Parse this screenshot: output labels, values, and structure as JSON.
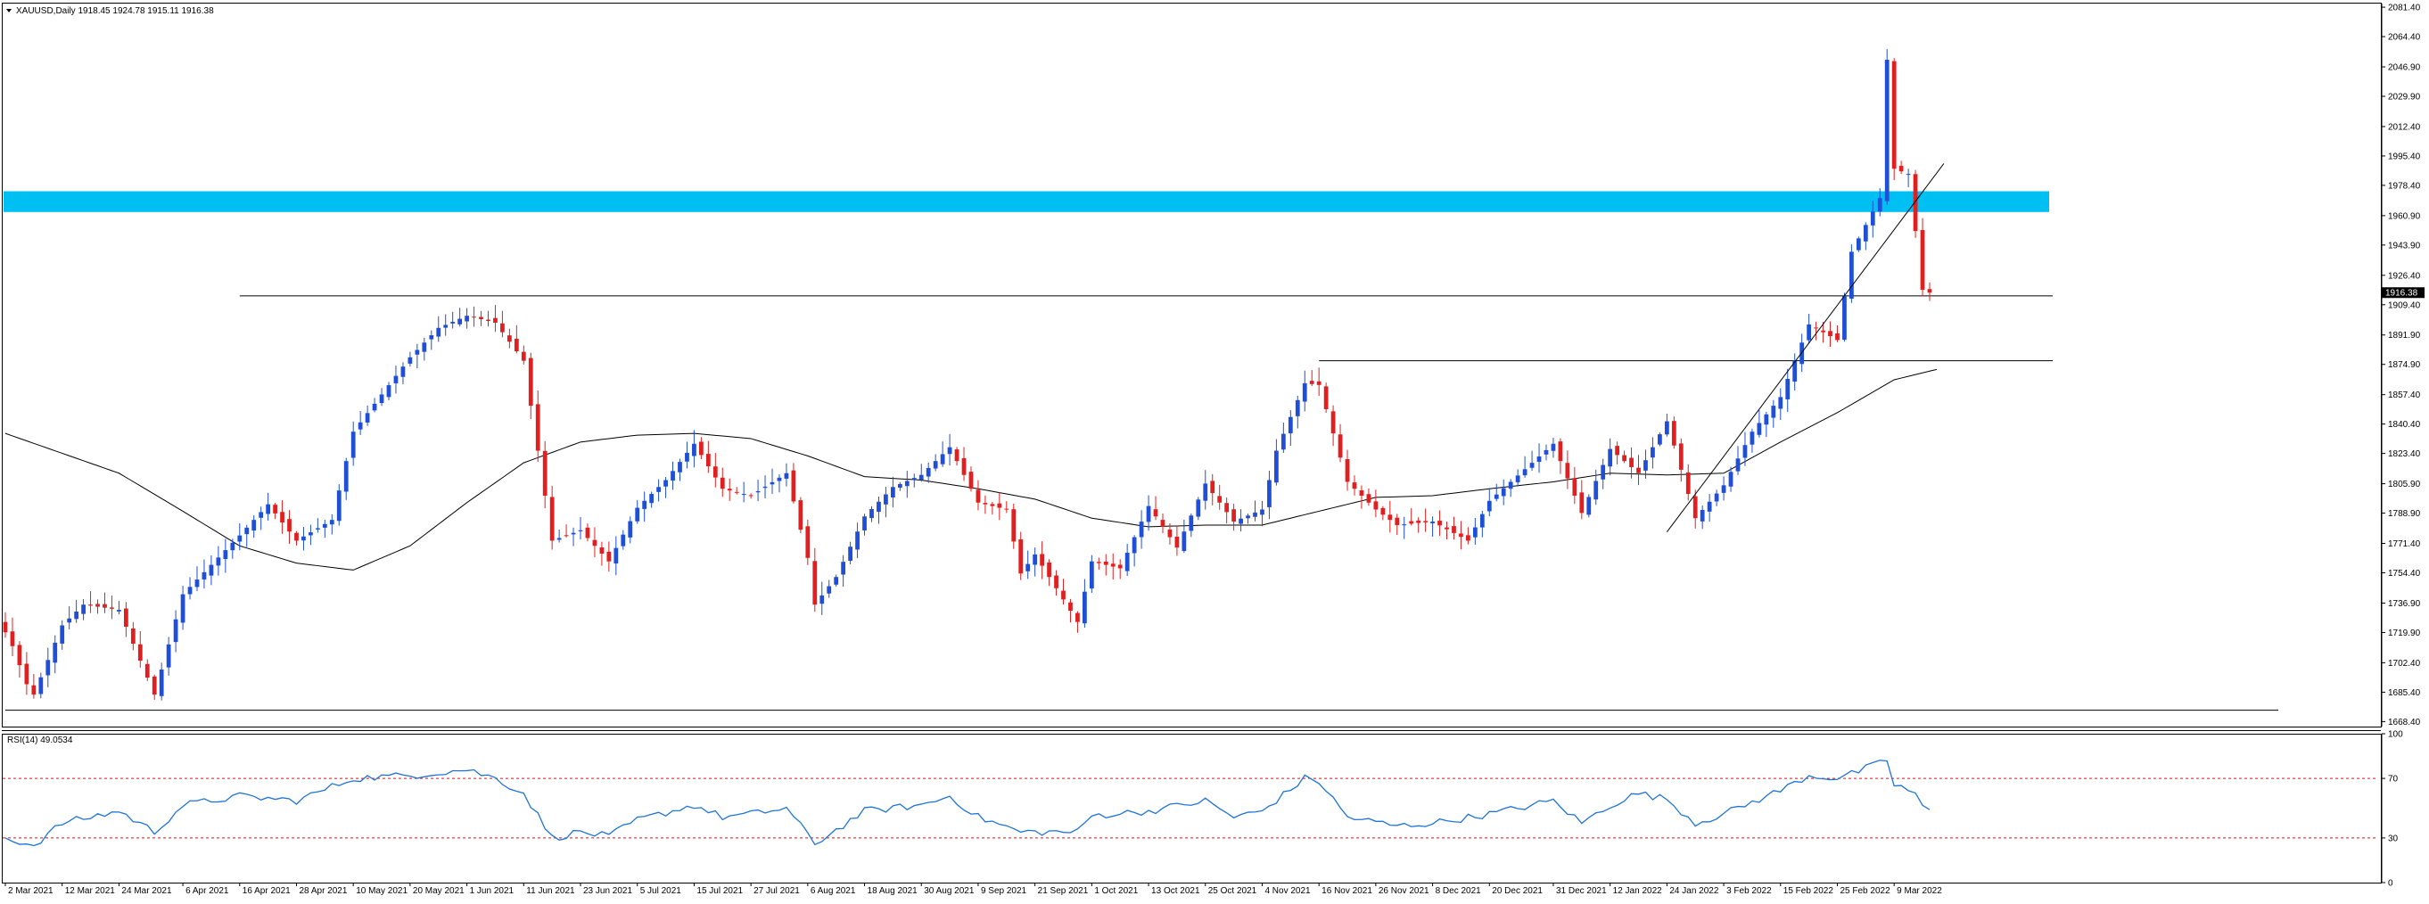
{
  "window": {
    "symbol_caption": "XAUUSD,Daily  1918.45 1924.78 1915.11 1916.38",
    "current_price_label": "1916.38"
  },
  "colors": {
    "bull_candle": "#1f4fd6",
    "bear_candle": "#e02020",
    "moving_average": "#000000",
    "resistance_zone": "#00bff3",
    "rsi_line": "#1e73d8",
    "rsi_levels": "#ff0000",
    "price_tag_bg": "#000000",
    "price_tag_text": "#ffffff"
  },
  "chart_data": [
    {
      "type": "candlestick",
      "title": "XAUUSD,Daily",
      "ohlc_caption": "1918.45 1924.78 1915.11 1916.38",
      "last_close": 1916.38,
      "ylim": [
        1665.5,
        2083.5
      ],
      "y_ticks": [
        "2081.40",
        "2064.40",
        "2046.90",
        "2029.90",
        "2012.40",
        "1995.40",
        "1978.40",
        "1960.90",
        "1943.90",
        "1926.40",
        "1909.40",
        "1891.90",
        "1874.90",
        "1857.40",
        "1840.40",
        "1823.40",
        "1805.90",
        "1788.90",
        "1771.40",
        "1754.40",
        "1736.90",
        "1719.90",
        "1702.40",
        "1685.40",
        "1668.40"
      ],
      "x_labels": [
        "2 Mar 2021",
        "12 Mar 2021",
        "24 Mar 2021",
        "6 Apr 2021",
        "16 Apr 2021",
        "28 Apr 2021",
        "10 May 2021",
        "20 May 2021",
        "1 Jun 2021",
        "11 Jun 2021",
        "23 Jun 2021",
        "5 Jul 2021",
        "15 Jul 2021",
        "27 Jul 2021",
        "6 Aug 2021",
        "18 Aug 2021",
        "30 Aug 2021",
        "9 Sep 2021",
        "21 Sep 2021",
        "1 Oct 2021",
        "13 Oct 2021",
        "25 Oct 2021",
        "4 Nov 2021",
        "16 Nov 2021",
        "26 Nov 2021",
        "8 Dec 2021",
        "20 Dec 2021",
        "31 Dec 2021",
        "12 Jan 2022",
        "24 Jan 2022",
        "3 Feb 2022",
        "15 Feb 2022",
        "25 Feb 2022",
        "9 Mar 2022"
      ],
      "price_path": [
        [
          "2 Mar 2021",
          1720
        ],
        [
          "3 Mar 2021",
          1712
        ],
        [
          "5 Mar 2021",
          1690
        ],
        [
          "8 Mar 2021",
          1684
        ],
        [
          "12 Mar 2021",
          1724
        ],
        [
          "17 Mar 2021",
          1736
        ],
        [
          "24 Mar 2021",
          1733
        ],
        [
          "31 Mar 2021",
          1684
        ],
        [
          "6 Apr 2021",
          1742
        ],
        [
          "16 Apr 2021",
          1776
        ],
        [
          "22 Apr 2021",
          1794
        ],
        [
          "28 Apr 2021",
          1773
        ],
        [
          "5 May 2021",
          1785
        ],
        [
          "10 May 2021",
          1836
        ],
        [
          "20 May 2021",
          1879
        ],
        [
          "26 May 2021",
          1896
        ],
        [
          "1 Jun 2021",
          1903
        ],
        [
          "7 Jun 2021",
          1899
        ],
        [
          "11 Jun 2021",
          1877
        ],
        [
          "17 Jun 2021",
          1773
        ],
        [
          "23 Jun 2021",
          1779
        ],
        [
          "29 Jun 2021",
          1761
        ],
        [
          "5 Jul 2021",
          1792
        ],
        [
          "9 Jul 2021",
          1808
        ],
        [
          "15 Jul 2021",
          1829
        ],
        [
          "21 Jul 2021",
          1803
        ],
        [
          "27 Jul 2021",
          1799
        ],
        [
          "3 Aug 2021",
          1812
        ],
        [
          "6 Aug 2021",
          1763
        ],
        [
          "9 Aug 2021",
          1736
        ],
        [
          "12 Aug 2021",
          1752
        ],
        [
          "18 Aug 2021",
          1787
        ],
        [
          "24 Aug 2021",
          1804
        ],
        [
          "30 Aug 2021",
          1811
        ],
        [
          "3 Sep 2021",
          1827
        ],
        [
          "9 Sep 2021",
          1795
        ],
        [
          "15 Sep 2021",
          1791
        ],
        [
          "17 Sep 2021",
          1754
        ],
        [
          "21 Sep 2021",
          1765
        ],
        [
          "29 Sep 2021",
          1726
        ],
        [
          "1 Oct 2021",
          1761
        ],
        [
          "7 Oct 2021",
          1757
        ],
        [
          "13 Oct 2021",
          1793
        ],
        [
          "19 Oct 2021",
          1769
        ],
        [
          "25 Oct 2021",
          1806
        ],
        [
          "29 Oct 2021",
          1784
        ],
        [
          "4 Nov 2021",
          1791
        ],
        [
          "8 Nov 2021",
          1825
        ],
        [
          "12 Nov 2021",
          1864
        ],
        [
          "16 Nov 2021",
          1863
        ],
        [
          "22 Nov 2021",
          1807
        ],
        [
          "26 Nov 2021",
          1791
        ],
        [
          "1 Dec 2021",
          1782
        ],
        [
          "8 Dec 2021",
          1784
        ],
        [
          "15 Dec 2021",
          1773
        ],
        [
          "20 Dec 2021",
          1796
        ],
        [
          "31 Dec 2021",
          1829
        ],
        [
          "6 Jan 2022",
          1789
        ],
        [
          "12 Jan 2022",
          1826
        ],
        [
          "18 Jan 2022",
          1812
        ],
        [
          "24 Jan 2022",
          1842
        ],
        [
          "28 Jan 2022",
          1786
        ],
        [
          "3 Feb 2022",
          1805
        ],
        [
          "9 Feb 2022",
          1836
        ],
        [
          "15 Feb 2022",
          1856
        ],
        [
          "21 Feb 2022",
          1898
        ],
        [
          "25 Feb 2022",
          1889
        ],
        [
          "1 Mar 2022",
          1940
        ],
        [
          "7 Mar 2022",
          1971
        ],
        [
          "8 Mar 2022",
          2051
        ],
        [
          "9 Mar 2022",
          1988
        ],
        [
          "11 Mar 2022",
          1985
        ],
        [
          "14 Mar 2022",
          1952
        ],
        [
          "15 Mar 2022",
          1918
        ],
        [
          "16 Mar 2022",
          1916.38
        ]
      ],
      "levels": [
        {
          "name": "resistance zone",
          "from": 1963,
          "to": 1975
        },
        {
          "name": "horizontal line",
          "value": 1914.5,
          "start": "16 Apr 2021"
        },
        {
          "name": "horizontal line",
          "value": 1877,
          "start": "16 Nov 2021"
        },
        {
          "name": "horizontal line",
          "value": 1675,
          "start": "2 Mar 2021"
        }
      ],
      "trendline": {
        "from": [
          "24 Jan 2022",
          1778
        ],
        "to": [
          "18 Mar 2022",
          1991
        ]
      },
      "moving_average_path": [
        [
          "2 Mar 2021",
          1835
        ],
        [
          "24 Mar 2021",
          1812
        ],
        [
          "6 Apr 2021",
          1790
        ],
        [
          "16 Apr 2021",
          1770
        ],
        [
          "28 Apr 2021",
          1760
        ],
        [
          "10 May 2021",
          1756
        ],
        [
          "20 May 2021",
          1770
        ],
        [
          "1 Jun 2021",
          1795
        ],
        [
          "11 Jun 2021",
          1818
        ],
        [
          "23 Jun 2021",
          1830
        ],
        [
          "5 Jul 2021",
          1834
        ],
        [
          "15 Jul 2021",
          1835
        ],
        [
          "27 Jul 2021",
          1832
        ],
        [
          "6 Aug 2021",
          1822
        ],
        [
          "18 Aug 2021",
          1810
        ],
        [
          "30 Aug 2021",
          1808
        ],
        [
          "9 Sep 2021",
          1803
        ],
        [
          "21 Sep 2021",
          1797
        ],
        [
          "1 Oct 2021",
          1786
        ],
        [
          "13 Oct 2021",
          1781
        ],
        [
          "25 Oct 2021",
          1782
        ],
        [
          "4 Nov 2021",
          1782
        ],
        [
          "16 Nov 2021",
          1790
        ],
        [
          "26 Nov 2021",
          1798
        ],
        [
          "8 Dec 2021",
          1799
        ],
        [
          "20 Dec 2021",
          1803
        ],
        [
          "31 Dec 2021",
          1807
        ],
        [
          "12 Jan 2022",
          1812
        ],
        [
          "24 Jan 2022",
          1811
        ],
        [
          "3 Feb 2022",
          1812
        ],
        [
          "15 Feb 2022",
          1830
        ],
        [
          "25 Feb 2022",
          1847
        ],
        [
          "9 Mar 2022",
          1866
        ],
        [
          "17 Mar 2022",
          1872
        ]
      ]
    },
    {
      "type": "line",
      "title": "RSI(14) 49.0534",
      "ylim": [
        0,
        100
      ],
      "y_ticks": [
        "100",
        "70",
        "30",
        "0"
      ],
      "levels": [
        70,
        30
      ],
      "series": [
        {
          "name": "RSI(14)",
          "points": [
            [
              "2 Mar 2021",
              30
            ],
            [
              "8 Mar 2021",
              25
            ],
            [
              "12 Mar 2021",
              40
            ],
            [
              "24 Mar 2021",
              48
            ],
            [
              "31 Mar 2021",
              34
            ],
            [
              "6 Apr 2021",
              52
            ],
            [
              "16 Apr 2021",
              58
            ],
            [
              "28 Apr 2021",
              55
            ],
            [
              "10 May 2021",
              70
            ],
            [
              "20 May 2021",
              72
            ],
            [
              "1 Jun 2021",
              76
            ],
            [
              "7 Jun 2021",
              70
            ],
            [
              "11 Jun 2021",
              60
            ],
            [
              "17 Jun 2021",
              30
            ],
            [
              "23 Jun 2021",
              34
            ],
            [
              "29 Jun 2021",
              31
            ],
            [
              "5 Jul 2021",
              42
            ],
            [
              "15 Jul 2021",
              52
            ],
            [
              "21 Jul 2021",
              44
            ],
            [
              "27 Jul 2021",
              46
            ],
            [
              "3 Aug 2021",
              50
            ],
            [
              "6 Aug 2021",
              32
            ],
            [
              "9 Aug 2021",
              26
            ],
            [
              "18 Aug 2021",
              48
            ],
            [
              "30 Aug 2021",
              52
            ],
            [
              "3 Sep 2021",
              58
            ],
            [
              "9 Sep 2021",
              44
            ],
            [
              "17 Sep 2021",
              34
            ],
            [
              "29 Sep 2021",
              34
            ],
            [
              "1 Oct 2021",
              45
            ],
            [
              "13 Oct 2021",
              48
            ],
            [
              "25 Oct 2021",
              55
            ],
            [
              "29 Oct 2021",
              44
            ],
            [
              "4 Nov 2021",
              48
            ],
            [
              "12 Nov 2021",
              70
            ],
            [
              "16 Nov 2021",
              68
            ],
            [
              "22 Nov 2021",
              44
            ],
            [
              "1 Dec 2021",
              38
            ],
            [
              "8 Dec 2021",
              40
            ],
            [
              "20 Dec 2021",
              46
            ],
            [
              "31 Dec 2021",
              55
            ],
            [
              "6 Jan 2022",
              40
            ],
            [
              "12 Jan 2022",
              52
            ],
            [
              "18 Jan 2022",
              60
            ],
            [
              "24 Jan 2022",
              56
            ],
            [
              "28 Jan 2022",
              40
            ],
            [
              "3 Feb 2022",
              46
            ],
            [
              "15 Feb 2022",
              62
            ],
            [
              "21 Feb 2022",
              72
            ],
            [
              "25 Feb 2022",
              70
            ],
            [
              "1 Mar 2022",
              73
            ],
            [
              "8 Mar 2022",
              82
            ],
            [
              "9 Mar 2022",
              66
            ],
            [
              "14 Mar 2022",
              60
            ],
            [
              "15 Mar 2022",
              50
            ],
            [
              "16 Mar 2022",
              49
            ]
          ]
        }
      ]
    }
  ]
}
